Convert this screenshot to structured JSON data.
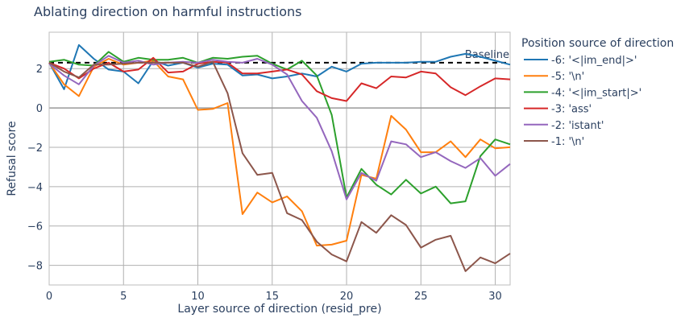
{
  "chart_data": {
    "type": "line",
    "title": "Ablating direction on harmful instructions",
    "xlabel": "Layer source of direction (resid_pre)",
    "ylabel": "Refusal score",
    "xlim": [
      0,
      31
    ],
    "ylim": [
      -9,
      3.85
    ],
    "x_ticks": [
      0,
      5,
      10,
      15,
      20,
      25,
      30
    ],
    "y_ticks": [
      -8,
      -6,
      -4,
      -2,
      0,
      2
    ],
    "y_tick_labels": [
      "−8",
      "−6",
      "−4",
      "−2",
      "0",
      "2"
    ],
    "grid": true,
    "legend_placement": "right",
    "legend_title": "Position source of direction",
    "baseline": {
      "value": 2.3,
      "label": "Baseline",
      "style": "dashed",
      "color": "#000000"
    },
    "x": [
      0,
      1,
      2,
      3,
      4,
      5,
      6,
      7,
      8,
      9,
      10,
      11,
      12,
      13,
      14,
      15,
      16,
      17,
      18,
      19,
      20,
      21,
      22,
      23,
      24,
      25,
      26,
      27,
      28,
      29,
      30,
      31
    ],
    "series": [
      {
        "name": "-6: '<|im_end|>'",
        "color": "#1f77b4",
        "values": [
          2.3,
          0.95,
          3.2,
          2.5,
          1.95,
          1.85,
          1.25,
          2.4,
          2.15,
          2.3,
          2.05,
          2.25,
          2.2,
          1.65,
          1.7,
          1.5,
          1.6,
          1.75,
          1.6,
          2.1,
          1.85,
          2.25,
          2.3,
          2.3,
          2.3,
          2.35,
          2.35,
          2.6,
          2.75,
          2.6,
          2.4,
          2.2
        ]
      },
      {
        "name": "-5: '\\n'",
        "color": "#ff7f0e",
        "values": [
          2.3,
          1.2,
          0.6,
          2.1,
          2.5,
          2.2,
          2.3,
          2.4,
          1.6,
          1.45,
          -0.1,
          -0.05,
          0.25,
          -5.4,
          -4.3,
          -4.8,
          -4.5,
          -5.25,
          -7.0,
          -6.95,
          -6.75,
          -3.4,
          -3.6,
          -0.4,
          -1.1,
          -2.25,
          -2.25,
          -1.7,
          -2.5,
          -1.6,
          -2.05,
          -2.0
        ]
      },
      {
        "name": "-4: '<|im_start|>'",
        "color": "#2ca02c",
        "values": [
          2.35,
          2.45,
          2.2,
          2.15,
          2.85,
          2.35,
          2.55,
          2.45,
          2.45,
          2.55,
          2.3,
          2.55,
          2.5,
          2.6,
          2.65,
          2.25,
          1.95,
          2.4,
          1.65,
          -0.35,
          -4.55,
          -3.1,
          -3.9,
          -4.4,
          -3.65,
          -4.35,
          -4.0,
          -4.85,
          -4.75,
          -2.45,
          -1.6,
          -1.85
        ]
      },
      {
        "name": "-3: 'ass'",
        "color": "#d62728",
        "values": [
          2.3,
          2.0,
          1.5,
          2.0,
          2.3,
          1.85,
          1.95,
          2.55,
          1.8,
          1.85,
          2.25,
          2.35,
          2.3,
          1.75,
          1.75,
          1.85,
          1.95,
          1.7,
          0.85,
          0.5,
          0.35,
          1.25,
          1.0,
          1.6,
          1.55,
          1.85,
          1.75,
          1.05,
          0.65,
          1.1,
          1.5,
          1.45
        ]
      },
      {
        "name": "-2: 'istant'",
        "color": "#9467bd",
        "values": [
          2.25,
          1.65,
          1.2,
          2.15,
          2.65,
          2.3,
          2.4,
          2.2,
          2.3,
          2.35,
          2.3,
          2.45,
          2.35,
          2.3,
          2.5,
          2.2,
          1.7,
          0.35,
          -0.5,
          -2.2,
          -4.65,
          -3.3,
          -3.7,
          -1.7,
          -1.85,
          -2.5,
          -2.25,
          -2.7,
          -3.05,
          -2.55,
          -3.45,
          -2.85
        ]
      },
      {
        "name": "-1: '\\n'",
        "color": "#8c564b",
        "values": [
          2.3,
          1.85,
          1.55,
          2.2,
          2.2,
          2.25,
          2.3,
          2.3,
          2.3,
          2.3,
          2.1,
          2.35,
          0.75,
          -2.3,
          -3.4,
          -3.3,
          -5.35,
          -5.7,
          -6.8,
          -7.45,
          -7.8,
          -5.8,
          -6.35,
          -5.45,
          -5.95,
          -7.1,
          -6.7,
          -6.5,
          -8.3,
          -7.6,
          -7.9,
          -7.4
        ]
      }
    ]
  }
}
